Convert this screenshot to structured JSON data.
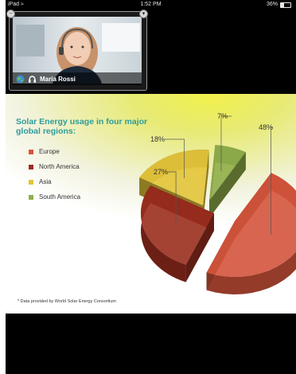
{
  "status_bar": {
    "device": "iPad",
    "time": "1:52 PM",
    "battery": "36%"
  },
  "video_call": {
    "participant_name": "Maria Rossi"
  },
  "slide": {
    "title": "Solar Energy usage in four major global regions:",
    "footnote": "* Data provided by World Solar Energy Consortium",
    "colors": {
      "europe": "#d4543c",
      "north_america": "#9a2e1e",
      "asia": "#e3c43a",
      "south_america": "#8fae4a"
    }
  },
  "chart_data": {
    "type": "pie",
    "title": "Solar Energy usage in four major global regions:",
    "categories": [
      "Europe",
      "North America",
      "Asia",
      "South America"
    ],
    "values": [
      48,
      27,
      18,
      7
    ],
    "labels": [
      "48%",
      "27%",
      "18%",
      "7%"
    ]
  }
}
